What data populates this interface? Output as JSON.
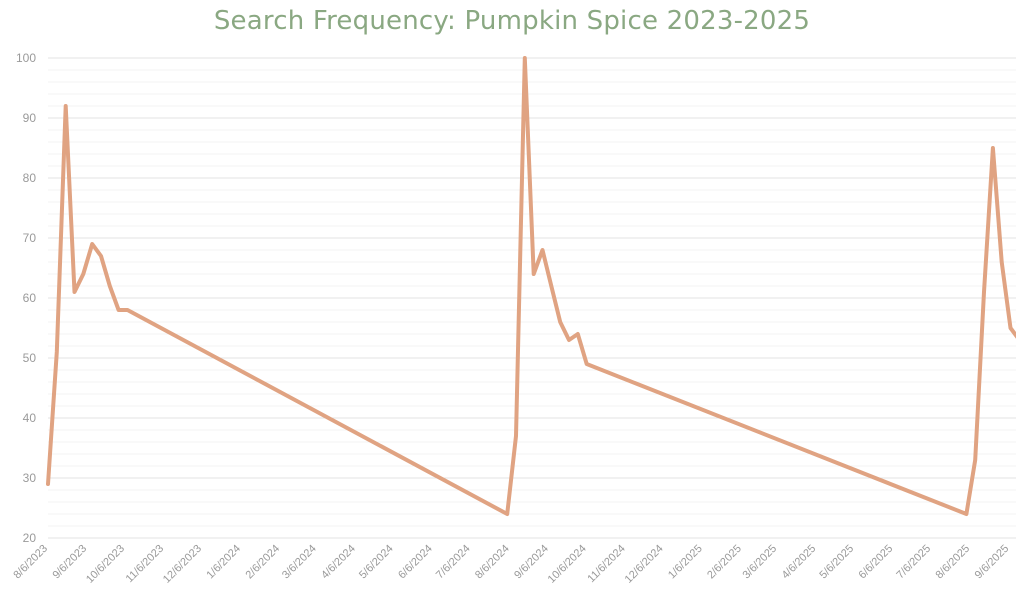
{
  "chart_data": {
    "type": "line",
    "title": "Search Frequency: Pumpkin Spice 2023-2025",
    "xlabel": "",
    "ylabel": "",
    "ylim": [
      20,
      100
    ],
    "yticks": [
      "20",
      "30",
      "40",
      "50",
      "60",
      "70",
      "80",
      "90",
      "100"
    ],
    "xticks": [
      "8/6/2023",
      "9/6/2023",
      "10/6/2023",
      "11/6/2023",
      "12/6/2023",
      "1/6/2024",
      "2/6/2024",
      "3/6/2024",
      "4/6/2024",
      "5/6/2024",
      "6/6/2024",
      "7/6/2024",
      "8/6/2024",
      "9/6/2024",
      "10/6/2024",
      "11/6/2024",
      "12/6/2024",
      "1/6/2025",
      "2/6/2025",
      "3/6/2025",
      "4/6/2025",
      "5/6/2025",
      "6/6/2025",
      "7/6/2025",
      "8/6/2025",
      "9/6/2025"
    ],
    "grid": true,
    "series": [
      {
        "color": "#e0a382",
        "x": [
          "2023-08-06",
          "2023-08-13",
          "2023-08-20",
          "2023-08-27",
          "2023-09-03",
          "2023-09-10",
          "2023-09-17",
          "2023-09-24",
          "2023-10-01",
          "2023-10-08",
          "2024-08-04",
          "2024-08-11",
          "2024-08-18",
          "2024-08-25",
          "2024-09-01",
          "2024-09-08",
          "2024-09-15",
          "2024-09-22",
          "2024-09-29",
          "2024-10-06",
          "2025-08-03",
          "2025-08-10",
          "2025-08-17",
          "2025-08-24",
          "2025-08-31",
          "2025-09-07",
          "2025-09-14",
          "2025-09-21"
        ],
        "y": [
          29,
          51,
          92,
          61,
          64,
          69,
          67,
          62,
          58,
          58,
          24,
          37,
          100,
          64,
          68,
          62,
          56,
          53,
          54,
          49,
          24,
          33,
          61,
          85,
          66,
          55,
          53,
          55
        ]
      }
    ]
  }
}
